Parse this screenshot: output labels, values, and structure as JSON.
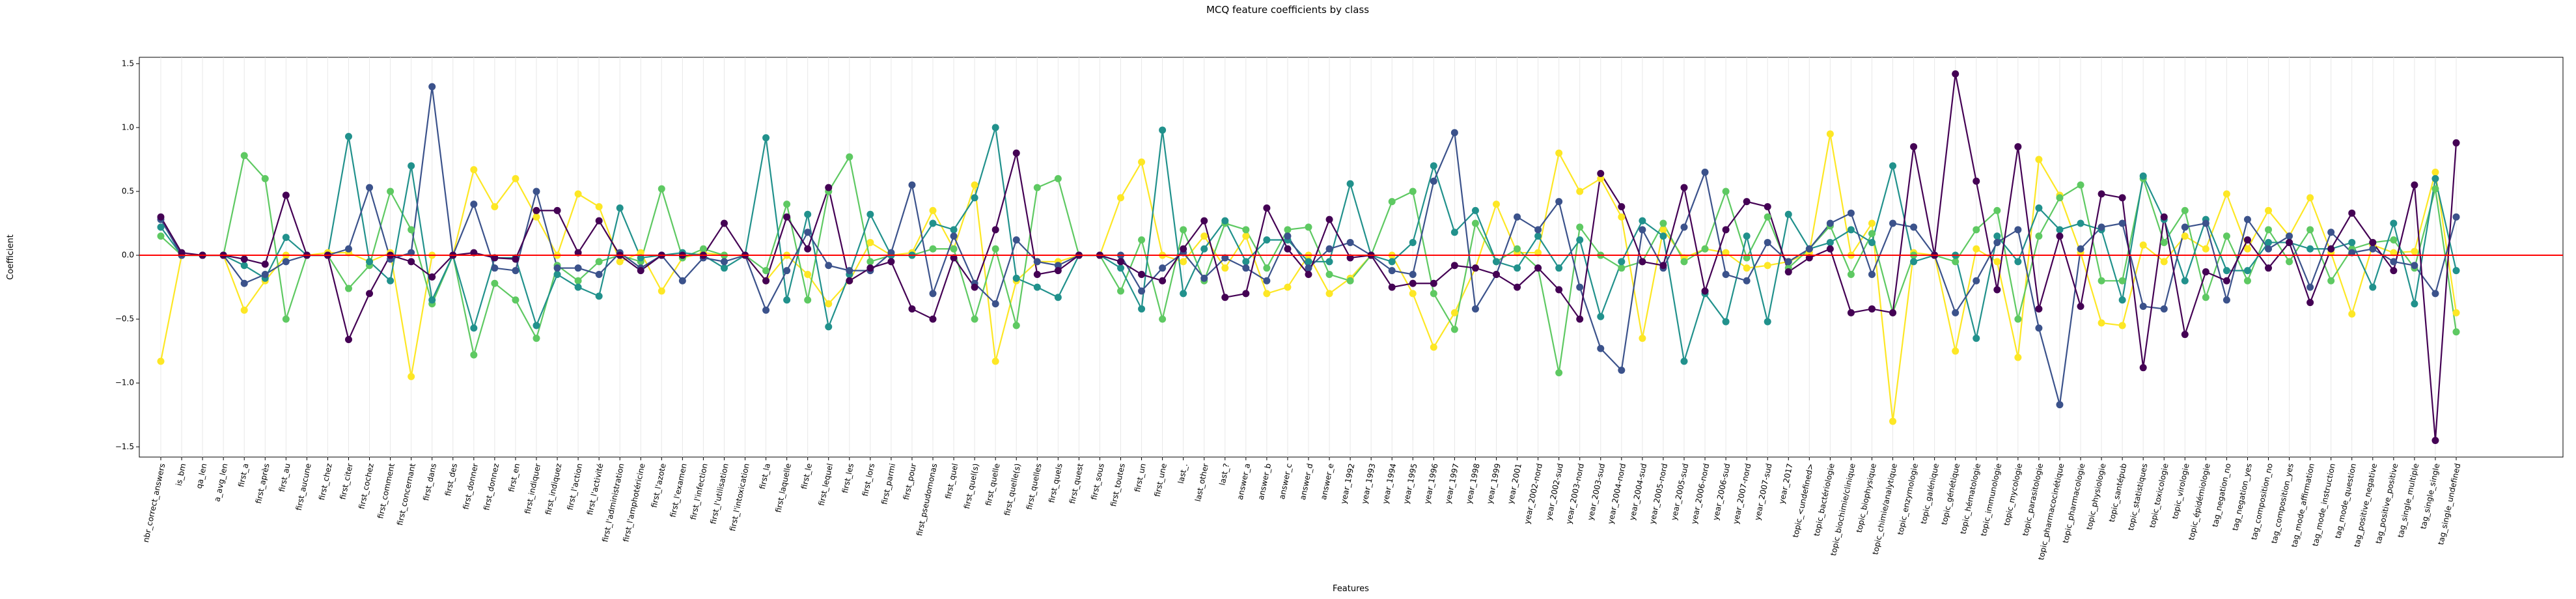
{
  "chart_data": {
    "type": "line",
    "title": "MCQ feature coefficients by class",
    "xlabel": "Features",
    "ylabel": "Coefficient",
    "categories": [
      "nbr_correct_answers",
      "is_bm",
      "qa_len",
      "a_avg_len",
      "first_a",
      "first_après",
      "first_au",
      "first_aucune",
      "first_chez",
      "first_citer",
      "first_cochez",
      "first_comment",
      "first_concernant",
      "first_dans",
      "first_des",
      "first_donner",
      "first_donnez",
      "first_en",
      "first_indiquer",
      "first_indiquez",
      "first_l'action",
      "first_l'activité",
      "first_l'administration",
      "first_l'amphotéricine",
      "first_l'azote",
      "first_l'examen",
      "first_l'infection",
      "first_l'utilisation",
      "first_l'intoxication",
      "first_la",
      "first_laquelle",
      "first_le",
      "first_lequel",
      "first_les",
      "first_lors",
      "first_parmi",
      "first_pour",
      "first_pseudomonas",
      "first_quel",
      "first_quel(s)",
      "first_quelle",
      "first_quelle(s)",
      "first_quelles",
      "first_quels",
      "first_quest",
      "first_sous",
      "first_toutes",
      "first_un",
      "first_une",
      "last_.",
      "last_other",
      "last_?",
      "answer_a",
      "answer_b",
      "answer_c",
      "answer_d",
      "answer_e",
      "year_1992",
      "year_1993",
      "year_1994",
      "year_1995",
      "year_1996",
      "year_1997",
      "year_1998",
      "year_1999",
      "year_2001",
      "year_2002-nord",
      "year_2002-sud",
      "year_2003-nord",
      "year_2003-sud",
      "year_2004-nord",
      "year_2004-sud",
      "year_2005-nord",
      "year_2005-sud",
      "year_2006-nord",
      "year_2006-sud",
      "year_2007-nord",
      "year_2007-sud",
      "year_2017",
      "topic_<undefined>",
      "topic_bactériologie",
      "topic_biochimie/clinique",
      "topic_biophysique",
      "topic_chimie/analytique",
      "topic_enzymologie",
      "topic_galénique",
      "topic_génétique",
      "topic_hématologie",
      "topic_immunologie",
      "topic_mycologie",
      "topic_parasitologie",
      "topic_pharmacocinétique",
      "topic_pharmacologie",
      "topic_physiologie",
      "topic_santépub",
      "topic_statistiques",
      "topic_toxicologie",
      "topic_virologie",
      "topic_épidémiologie",
      "tag_negation_no",
      "tag_negation_yes",
      "tag_composition_no",
      "tag_composition_yes",
      "tag_mode_affirmation",
      "tag_mode_instruction",
      "tag_mode_question",
      "tag_positive_negative",
      "tag_positive_positive",
      "tag_single_multiple",
      "tag_single_single",
      "tag_single_undefined"
    ],
    "series": [
      {
        "color": "#fde725",
        "values": [
          -0.83,
          0,
          0,
          0,
          -0.43,
          -0.2,
          0,
          0,
          0.02,
          0.02,
          -0.05,
          0.02,
          -0.95,
          0,
          0,
          0.67,
          0.38,
          0.6,
          0.3,
          0,
          0.48,
          0.38,
          -0.05,
          0.02,
          -0.28,
          -0.02,
          0.02,
          0,
          0,
          -0.2,
          0,
          -0.15,
          -0.38,
          -0.2,
          0.1,
          0,
          0.02,
          0.35,
          0.05,
          0.55,
          -0.83,
          -0.2,
          -0.05,
          -0.05,
          0,
          0,
          0.45,
          0.73,
          0,
          -0.05,
          0.15,
          -0.1,
          0.15,
          -0.3,
          -0.25,
          0,
          -0.3,
          -0.18,
          0,
          0,
          -0.3,
          -0.72,
          -0.45,
          -0.1,
          0.4,
          0.02,
          0.02,
          0.8,
          0.5,
          0.6,
          0.3,
          -0.65,
          0.2,
          -0.02,
          0.05,
          0.02,
          -0.1,
          -0.08,
          -0.05,
          0.02,
          0.95,
          0,
          0.25,
          -1.3,
          0.02,
          0,
          -0.75,
          0.05,
          -0.05,
          -0.8,
          0.75,
          0.47,
          0.02,
          -0.53,
          -0.55,
          0.08,
          -0.05,
          0.15,
          0.05,
          0.48,
          0.05,
          0.35,
          0.15,
          0.45,
          0.02,
          -0.46,
          0.08,
          0.02,
          0.03,
          0.65,
          -0.45
        ]
      },
      {
        "color": "#5ec962",
        "values": [
          0.15,
          0,
          0,
          0,
          0.78,
          0.6,
          -0.5,
          0,
          0,
          -0.26,
          -0.08,
          0.5,
          0.2,
          -0.38,
          0,
          -0.78,
          -0.22,
          -0.35,
          -0.65,
          -0.08,
          -0.2,
          -0.05,
          0,
          -0.05,
          0.52,
          -0.02,
          0.05,
          0,
          0,
          -0.12,
          0.4,
          -0.35,
          0.5,
          0.77,
          -0.05,
          0,
          0,
          0.05,
          0.05,
          -0.5,
          0.05,
          -0.55,
          0.53,
          0.6,
          0,
          0,
          -0.28,
          0.12,
          -0.5,
          0.2,
          -0.2,
          0.25,
          0.2,
          -0.1,
          0.2,
          0.22,
          -0.15,
          -0.2,
          0,
          0.42,
          0.5,
          -0.3,
          -0.58,
          0.25,
          -0.05,
          0.05,
          -0.1,
          -0.92,
          0.22,
          0,
          -0.1,
          -0.05,
          0.25,
          -0.05,
          0.05,
          0.5,
          -0.02,
          0.3,
          -0.1,
          0.05,
          0.23,
          -0.15,
          0.17,
          -0.45,
          0,
          0,
          -0.05,
          0.2,
          0.35,
          -0.5,
          0.15,
          0.45,
          0.55,
          -0.2,
          -0.2,
          0.6,
          0.1,
          0.35,
          -0.33,
          0.15,
          -0.2,
          0.2,
          -0.05,
          0.2,
          -0.2,
          0.05,
          0.1,
          0.12,
          -0.1,
          0.52,
          -0.6
        ]
      },
      {
        "color": "#21918c",
        "values": [
          0.22,
          0,
          0,
          0,
          -0.08,
          -0.18,
          0.14,
          0,
          0,
          0.93,
          -0.05,
          -0.2,
          0.7,
          -0.35,
          0,
          -0.57,
          -0.02,
          -0.02,
          -0.55,
          -0.15,
          -0.25,
          -0.32,
          0.37,
          -0.02,
          0,
          0.02,
          0,
          -0.1,
          0,
          0.92,
          -0.35,
          0.32,
          -0.56,
          -0.15,
          0.32,
          0,
          0,
          0.25,
          0.2,
          0.45,
          1,
          -0.18,
          -0.25,
          -0.33,
          0,
          0,
          -0.1,
          -0.42,
          0.98,
          -0.3,
          0.05,
          0.27,
          -0.05,
          0.12,
          0.12,
          -0.05,
          -0.05,
          0.56,
          0,
          -0.05,
          0.1,
          0.7,
          0.18,
          0.35,
          -0.05,
          -0.1,
          0.15,
          -0.1,
          0.12,
          -0.48,
          -0.05,
          0.27,
          0.15,
          -0.83,
          -0.3,
          -0.52,
          0.15,
          -0.52,
          0.32,
          0.05,
          0.1,
          0.2,
          0.1,
          0.7,
          -0.05,
          0,
          0,
          -0.65,
          0.15,
          -0.05,
          0.37,
          0.2,
          0.25,
          0.2,
          -0.35,
          0.62,
          0.28,
          -0.2,
          0.28,
          -0.12,
          -0.12,
          0.1,
          0.1,
          0.05,
          0.05,
          0.1,
          -0.25,
          0.25,
          -0.38,
          0.6,
          -0.12
        ]
      },
      {
        "color": "#3b528b",
        "values": [
          0.28,
          0,
          0,
          0,
          -0.22,
          -0.15,
          -0.05,
          0,
          0,
          0.05,
          0.53,
          -0.03,
          0.02,
          1.32,
          0,
          0.4,
          -0.1,
          -0.12,
          0.5,
          -0.1,
          -0.1,
          -0.15,
          0.02,
          -0.1,
          0,
          -0.2,
          -0.02,
          -0.05,
          0,
          -0.43,
          -0.12,
          0.18,
          -0.08,
          -0.12,
          -0.12,
          0.02,
          0.55,
          -0.3,
          0.15,
          -0.22,
          -0.38,
          0.12,
          -0.05,
          -0.08,
          0,
          0,
          0,
          -0.28,
          -0.1,
          0.02,
          -0.18,
          -0.02,
          -0.1,
          -0.2,
          0.15,
          -0.1,
          0.05,
          0.1,
          0,
          -0.12,
          -0.15,
          0.58,
          0.96,
          -0.42,
          -0.15,
          0.3,
          0.2,
          0.42,
          -0.25,
          -0.73,
          -0.9,
          0.2,
          -0.1,
          0.22,
          0.65,
          -0.15,
          -0.2,
          0.1,
          -0.05,
          0.05,
          0.25,
          0.33,
          -0.15,
          0.25,
          0.22,
          0,
          -0.45,
          -0.2,
          0.1,
          0.2,
          -0.57,
          -1.17,
          0.05,
          0.22,
          0.25,
          -0.4,
          -0.42,
          0.22,
          0.25,
          -0.35,
          0.28,
          0.05,
          0.15,
          -0.25,
          0.18,
          0.02,
          0.05,
          -0.05,
          -0.08,
          -0.3,
          0.3
        ]
      },
      {
        "color": "#440154",
        "values": [
          0.3,
          0.02,
          0,
          0,
          -0.03,
          -0.07,
          0.47,
          0,
          0,
          -0.66,
          -0.3,
          0,
          -0.05,
          -0.17,
          0,
          0.02,
          -0.02,
          -0.03,
          0.35,
          0.35,
          0.02,
          0.27,
          0,
          -0.12,
          0,
          0,
          0,
          0.25,
          0,
          -0.2,
          0.3,
          0.05,
          0.53,
          -0.2,
          -0.1,
          -0.05,
          -0.42,
          -0.5,
          -0.02,
          -0.25,
          0.2,
          0.8,
          -0.15,
          -0.12,
          0,
          0,
          -0.05,
          -0.15,
          -0.2,
          0.05,
          0.27,
          -0.33,
          -0.3,
          0.37,
          0.05,
          -0.15,
          0.28,
          -0.02,
          0,
          -0.25,
          -0.22,
          -0.22,
          -0.08,
          -0.1,
          -0.15,
          -0.25,
          -0.1,
          -0.27,
          -0.5,
          0.64,
          0.38,
          -0.05,
          -0.08,
          0.53,
          -0.28,
          0.2,
          0.42,
          0.38,
          -0.13,
          -0.02,
          0.05,
          -0.45,
          -0.42,
          -0.45,
          0.85,
          0,
          1.42,
          0.58,
          -0.27,
          0.85,
          -0.42,
          0.15,
          -0.4,
          0.48,
          0.45,
          -0.88,
          0.3,
          -0.62,
          -0.13,
          -0.2,
          0.12,
          -0.1,
          0.1,
          -0.37,
          0.05,
          0.33,
          0.1,
          -0.12,
          0.55,
          -1.45,
          0.88
        ]
      }
    ],
    "ylim": [
      -1.58,
      1.55
    ],
    "yticks": [
      {
        "value": -1.5,
        "label": "−1.5"
      },
      {
        "value": -1,
        "label": "−1.0"
      },
      {
        "value": -0.5,
        "label": "−0.5"
      },
      {
        "value": 0,
        "label": "0.0"
      },
      {
        "value": 0.5,
        "label": "0.5"
      },
      {
        "value": 1,
        "label": "1.0"
      },
      {
        "value": 1.5,
        "label": "1.5"
      }
    ],
    "grid": true,
    "zero_line": {
      "value": 0,
      "color": "#ff0000"
    }
  }
}
